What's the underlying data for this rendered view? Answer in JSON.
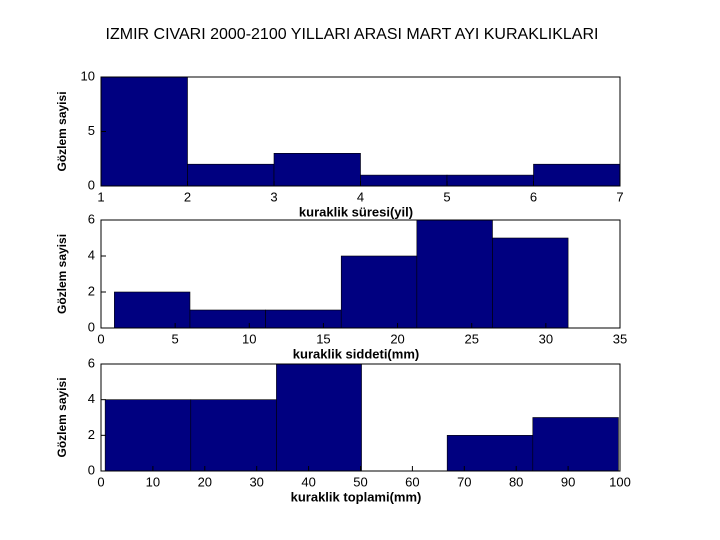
{
  "title": "IZMIR CIVARI 2000-2100 YILLARI ARASI MART AYI KURAKLIKLARI",
  "chart_data": [
    {
      "type": "histogram",
      "xlabel": "kuraklik süresi(yil)",
      "ylabel": "Gözlem sayisi",
      "color": "#000080",
      "bins": [
        1,
        2,
        3,
        4,
        5,
        6,
        7
      ],
      "counts": [
        10,
        2,
        3,
        1,
        1,
        2
      ],
      "xlim": [
        1,
        7
      ],
      "xticks": [
        1,
        2,
        3,
        4,
        5,
        6,
        7
      ],
      "ylim": [
        0,
        10
      ],
      "yticks": [
        0,
        5,
        10
      ]
    },
    {
      "type": "histogram",
      "xlabel": "kuraklik siddeti(mm)",
      "ylabel": "Gözlem sayisi",
      "color": "#000080",
      "bins": [
        0.9,
        6.0,
        11.1,
        16.2,
        21.3,
        26.4,
        31.5
      ],
      "counts": [
        2,
        1,
        1,
        4,
        6,
        5
      ],
      "xlim": [
        0,
        35
      ],
      "xticks": [
        0,
        5,
        10,
        15,
        20,
        25,
        30,
        35
      ],
      "ylim": [
        0,
        6
      ],
      "yticks": [
        0,
        2,
        4,
        6
      ]
    },
    {
      "type": "histogram",
      "xlabel": "kuraklik toplami(mm)",
      "ylabel": "Gözlem sayisi",
      "color": "#000080",
      "bins": [
        0.8,
        17.3,
        33.8,
        50.2,
        66.7,
        83.2,
        99.7
      ],
      "counts": [
        4,
        4,
        6,
        0,
        2,
        3
      ],
      "xlim": [
        0,
        100
      ],
      "xticks": [
        0,
        10,
        20,
        30,
        40,
        50,
        60,
        70,
        80,
        90,
        100
      ],
      "ylim": [
        0,
        6
      ],
      "yticks": [
        0,
        2,
        4,
        6
      ]
    }
  ]
}
